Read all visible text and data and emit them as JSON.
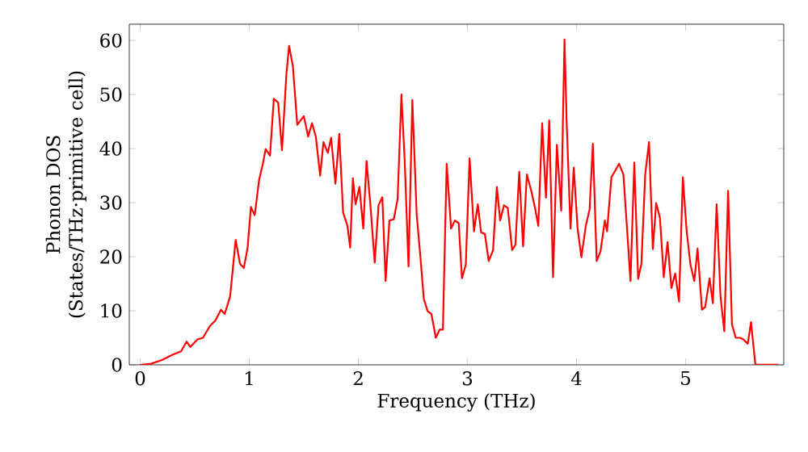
{
  "chart_data": {
    "type": "line",
    "xlabel": "Frequency (THz)",
    "ylabel": "Phonon DOS (States/THz·primitive cell)",
    "color": "#ff0000",
    "xlim": [
      -0.1,
      5.9
    ],
    "ylim": [
      0,
      63
    ],
    "xticks": [
      0,
      1,
      2,
      3,
      4,
      5
    ],
    "yticks": [
      0,
      10,
      20,
      30,
      40,
      50,
      60
    ],
    "grid": false,
    "x": [
      0,
      0.1,
      0.2,
      0.3,
      0.375,
      0.425,
      0.46,
      0.525,
      0.575,
      0.64,
      0.69,
      0.74,
      0.775,
      0.825,
      0.875,
      0.915,
      0.95,
      0.985,
      1.015,
      1.05,
      1.09,
      1.125,
      1.15,
      1.19,
      1.225,
      1.265,
      1.3,
      1.34,
      1.365,
      1.4,
      1.44,
      1.5,
      1.54,
      1.575,
      1.61,
      1.65,
      1.68,
      1.72,
      1.75,
      1.79,
      1.825,
      1.86,
      1.9,
      1.925,
      1.95,
      1.975,
      2.01,
      2.045,
      2.075,
      2.11,
      2.15,
      2.185,
      2.22,
      2.25,
      2.285,
      2.325,
      2.36,
      2.395,
      2.425,
      2.46,
      2.495,
      2.535,
      2.57,
      2.6,
      2.635,
      2.67,
      2.71,
      2.745,
      2.775,
      2.81,
      2.85,
      2.885,
      2.92,
      2.95,
      2.985,
      3.02,
      3.06,
      3.095,
      3.125,
      3.16,
      3.195,
      3.235,
      3.27,
      3.3,
      3.335,
      3.37,
      3.41,
      3.44,
      3.475,
      3.51,
      3.545,
      3.585,
      3.62,
      3.65,
      3.685,
      3.72,
      3.75,
      3.785,
      3.82,
      3.86,
      3.89,
      3.91,
      3.945,
      3.975,
      4.01,
      4.045,
      4.085,
      4.12,
      4.15,
      4.185,
      4.22,
      4.26,
      4.28,
      4.32,
      4.355,
      4.39,
      4.43,
      4.46,
      4.495,
      4.53,
      4.565,
      4.595,
      4.63,
      4.665,
      4.7,
      4.73,
      4.765,
      4.8,
      4.835,
      4.87,
      4.905,
      4.94,
      4.975,
      5.01,
      5.045,
      5.08,
      5.11,
      5.15,
      5.18,
      5.22,
      5.25,
      5.285,
      5.32,
      5.355,
      5.39,
      5.425,
      5.46,
      5.5,
      5.53,
      5.57,
      5.6,
      5.64,
      5.85
    ],
    "values": [
      0,
      0.2,
      0.9,
      1.9,
      2.5,
      4.3,
      3.3,
      4.7,
      5,
      7.2,
      8.2,
      10.2,
      9.4,
      12.7,
      23.1,
      18.7,
      17.9,
      21.7,
      29.2,
      27.7,
      34.2,
      37.2,
      39.9,
      38.7,
      49.2,
      48.5,
      39.7,
      53.7,
      59,
      55.2,
      44.4,
      46,
      42.2,
      44.7,
      42.2,
      35,
      41.2,
      39.2,
      42,
      33.5,
      42.7,
      28.2,
      25.7,
      21.7,
      34.5,
      29.7,
      32.9,
      25.2,
      37.7,
      29.7,
      18.9,
      29.5,
      31,
      15.5,
      26.7,
      26.9,
      30.7,
      50,
      37.7,
      18.2,
      49,
      27.7,
      19.7,
      12.2,
      9.9,
      9.4,
      5,
      6.5,
      6.5,
      37.2,
      25.2,
      26.7,
      26.2,
      16,
      18.5,
      38.2,
      24.7,
      29.7,
      24.5,
      24.2,
      19.2,
      21.2,
      32.9,
      26.7,
      29.5,
      29,
      21.2,
      22.2,
      35.7,
      21.9,
      35.2,
      32.2,
      29,
      25.7,
      44.7,
      30.9,
      45.2,
      16.2,
      40.7,
      28.5,
      60.2,
      44.7,
      25.2,
      36.5,
      25.2,
      19.9,
      25.7,
      28.7,
      40.9,
      19.2,
      21,
      26.7,
      24.7,
      34.7,
      35.9,
      37.2,
      35.2,
      26.2,
      15.5,
      37.4,
      15.9,
      18.7,
      35.2,
      41.2,
      21.4,
      29.9,
      27.2,
      16.2,
      22.7,
      14.2,
      16.9,
      11.7,
      34.7,
      24.7,
      18.5,
      15.5,
      21.5,
      10.2,
      10.7,
      16,
      11.4,
      29.7,
      12.7,
      6.2,
      32.2,
      7.5,
      5,
      5,
      4.7,
      3.9,
      7.9,
      0,
      0
    ]
  }
}
